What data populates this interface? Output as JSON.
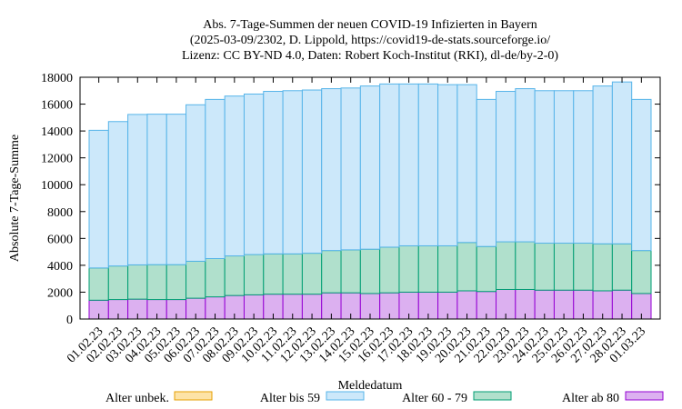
{
  "chart_data": {
    "type": "bar",
    "stacked": true,
    "title": [
      "Abs. 7-Tage-Summen der neuen COVID-19 Infizierten in Bayern",
      "(2025-03-09/2302, D. Lippold, https://covid19-de-stats.sourceforge.io/",
      "Lizenz: CC BY-ND 4.0, Daten: Robert Koch-Institut (RKI), dl-de/by-2-0)"
    ],
    "xlabel": "Meldedatum",
    "ylabel": "Absolute 7-Tage-Summe",
    "ylim": [
      0,
      18000
    ],
    "yticks": [
      0,
      2000,
      4000,
      6000,
      8000,
      10000,
      12000,
      14000,
      16000,
      18000
    ],
    "categories": [
      "01.02.23",
      "02.02.23",
      "03.02.23",
      "04.02.23",
      "05.02.23",
      "06.02.23",
      "07.02.23",
      "08.02.23",
      "09.02.23",
      "10.02.23",
      "11.02.23",
      "12.02.23",
      "13.02.23",
      "14.02.23",
      "15.02.23",
      "16.02.23",
      "17.02.23",
      "18.02.23",
      "19.02.23",
      "20.02.23",
      "21.02.23",
      "22.02.23",
      "23.02.23",
      "24.02.23",
      "25.02.23",
      "26.02.23",
      "27.02.23",
      "28.02.23",
      "01.03.23"
    ],
    "legend_position": "bottom",
    "series": [
      {
        "name": "Alter ab 80",
        "fill": "#dcb0f0",
        "stroke": "#9400d3",
        "values": [
          1400,
          1450,
          1480,
          1450,
          1450,
          1550,
          1650,
          1750,
          1800,
          1850,
          1850,
          1850,
          1950,
          1950,
          1900,
          1950,
          2000,
          2000,
          2000,
          2100,
          2050,
          2200,
          2200,
          2150,
          2150,
          2150,
          2100,
          2150,
          1900
        ]
      },
      {
        "name": "Alter 60 - 79",
        "fill": "#b0e0cc",
        "stroke": "#009e73",
        "values": [
          2400,
          2500,
          2550,
          2600,
          2600,
          2750,
          2850,
          2950,
          3000,
          3000,
          3000,
          3050,
          3150,
          3200,
          3300,
          3400,
          3450,
          3450,
          3450,
          3600,
          3350,
          3550,
          3550,
          3500,
          3500,
          3500,
          3500,
          3450,
          3200
        ]
      },
      {
        "name": "Alter bis 59",
        "fill": "#cce8fa",
        "stroke": "#56b4e9",
        "values": [
          10250,
          10750,
          11200,
          11200,
          11200,
          11650,
          11850,
          11900,
          11950,
          12100,
          12150,
          12150,
          12050,
          12050,
          12150,
          12150,
          12050,
          12050,
          12000,
          11750,
          10950,
          11200,
          11400,
          11350,
          11350,
          11350,
          11750,
          12050,
          11250
        ]
      },
      {
        "name": "Alter unbek.",
        "fill": "#fde3a7",
        "stroke": "#e69f00",
        "values": [
          0,
          0,
          0,
          0,
          0,
          0,
          0,
          0,
          0,
          0,
          0,
          0,
          0,
          0,
          0,
          0,
          0,
          0,
          0,
          0,
          0,
          0,
          0,
          0,
          0,
          0,
          0,
          0,
          0
        ]
      }
    ],
    "legend_order": [
      "Alter unbek.",
      "Alter bis 59",
      "Alter 60 - 79",
      "Alter ab 80"
    ]
  }
}
